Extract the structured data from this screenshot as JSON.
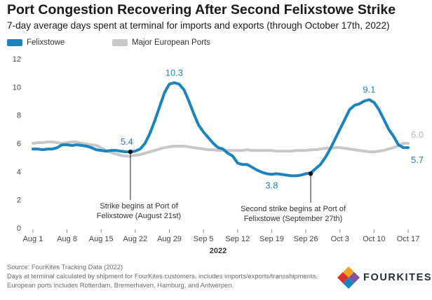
{
  "header": {
    "title": "Port Congestion Recovering After Second Felixstowe Strike",
    "subtitle": "7-day average days spent at terminal for imports and exports (through October 17th, 2022)"
  },
  "colors": {
    "felixstowe": "#1b84be",
    "europe": "#c8c8c8",
    "europe_label": "#b9b9b9"
  },
  "chart_data": {
    "type": "line",
    "xlabel": "2022",
    "ylabel": "",
    "ylim": [
      0,
      12
    ],
    "yticks": [
      0,
      2,
      4,
      6,
      8,
      10,
      12
    ],
    "categories": [
      "Aug 1",
      "Aug 8",
      "Aug 15",
      "Aug 22",
      "Aug 29",
      "Sep 5",
      "Sep 12",
      "Sep 19",
      "Sep 26",
      "Oct 3",
      "Oct 10",
      "Oct 17"
    ],
    "x_day_range": [
      -1,
      77
    ],
    "series": [
      {
        "name": "Felixstowe",
        "color": "#1b84be",
        "x": [
          0,
          1,
          2,
          3,
          4,
          5,
          6,
          7,
          8,
          9,
          10,
          11,
          12,
          13,
          14,
          15,
          16,
          17,
          18,
          19,
          20,
          21,
          22,
          23,
          24,
          25,
          26,
          27,
          28,
          29,
          30,
          31,
          32,
          33,
          34,
          35,
          36,
          37,
          38,
          39,
          40,
          41,
          42,
          43,
          44,
          45,
          46,
          47,
          48,
          49,
          50,
          51,
          52,
          53,
          54,
          55,
          56,
          57,
          58,
          59,
          60,
          61,
          62,
          63,
          64,
          65,
          66,
          67,
          68,
          69,
          70,
          71,
          72,
          73,
          74,
          75,
          76,
          77
        ],
        "values": [
          5.6,
          5.6,
          5.55,
          5.6,
          5.6,
          5.7,
          5.9,
          5.9,
          5.85,
          5.9,
          5.85,
          5.8,
          5.7,
          5.55,
          5.5,
          5.45,
          5.5,
          5.5,
          5.45,
          5.4,
          5.4,
          5.45,
          5.6,
          6.0,
          6.7,
          7.6,
          8.6,
          9.6,
          10.2,
          10.3,
          10.2,
          9.8,
          9.0,
          8.1,
          7.3,
          6.8,
          6.4,
          6.0,
          5.7,
          5.6,
          5.3,
          5.1,
          4.6,
          4.5,
          4.5,
          4.3,
          4.1,
          3.95,
          3.85,
          3.8,
          3.85,
          3.8,
          3.75,
          3.7,
          3.7,
          3.75,
          3.85,
          3.9,
          4.2,
          4.5,
          5.0,
          5.6,
          6.3,
          7.0,
          7.7,
          8.4,
          8.7,
          8.8,
          9.0,
          9.1,
          8.9,
          8.4,
          7.7,
          7.0,
          6.5,
          5.9,
          5.7,
          5.7
        ]
      },
      {
        "name": "Major European Ports",
        "color": "#c8c8c8",
        "x": [
          0,
          1,
          2,
          3,
          4,
          5,
          6,
          7,
          8,
          9,
          10,
          11,
          12,
          13,
          14,
          15,
          16,
          17,
          18,
          19,
          20,
          21,
          22,
          23,
          24,
          25,
          26,
          27,
          28,
          29,
          30,
          31,
          32,
          33,
          34,
          35,
          36,
          37,
          38,
          39,
          40,
          41,
          42,
          43,
          44,
          45,
          46,
          47,
          48,
          49,
          50,
          51,
          52,
          53,
          54,
          55,
          56,
          57,
          58,
          59,
          60,
          61,
          62,
          63,
          64,
          65,
          66,
          67,
          68,
          69,
          70,
          71,
          72,
          73,
          74,
          75,
          76,
          77
        ],
        "values": [
          6.0,
          6.05,
          6.05,
          6.1,
          6.1,
          6.05,
          6.0,
          6.05,
          6.1,
          6.1,
          6.0,
          5.95,
          5.9,
          5.85,
          5.7,
          5.5,
          5.35,
          5.25,
          5.15,
          5.1,
          5.1,
          5.15,
          5.2,
          5.3,
          5.4,
          5.5,
          5.6,
          5.7,
          5.75,
          5.8,
          5.8,
          5.8,
          5.75,
          5.7,
          5.65,
          5.6,
          5.55,
          5.55,
          5.5,
          5.5,
          5.5,
          5.5,
          5.5,
          5.5,
          5.55,
          5.5,
          5.5,
          5.5,
          5.5,
          5.5,
          5.45,
          5.45,
          5.45,
          5.45,
          5.5,
          5.5,
          5.5,
          5.55,
          5.55,
          5.6,
          5.65,
          5.65,
          5.7,
          5.7,
          5.65,
          5.6,
          5.55,
          5.5,
          5.45,
          5.4,
          5.4,
          5.45,
          5.5,
          5.6,
          5.7,
          5.85,
          6.0,
          6.0
        ]
      }
    ],
    "data_labels": [
      {
        "text": "5.4",
        "x": 20,
        "y": 5.4,
        "series": "Felixstowe"
      },
      {
        "text": "10.3",
        "x": 29,
        "y": 10.3,
        "series": "Felixstowe"
      },
      {
        "text": "3.8",
        "x": 49,
        "y": 3.8,
        "series": "Felixstowe"
      },
      {
        "text": "9.1",
        "x": 69,
        "y": 9.1,
        "series": "Felixstowe"
      },
      {
        "text": "6.0",
        "x": 77,
        "y": 6.0,
        "series": "Major European Ports"
      },
      {
        "text": "5.7",
        "x": 77,
        "y": 5.7,
        "series": "Felixstowe"
      }
    ],
    "annotations": [
      {
        "lines": [
          "Strike begins at Port of",
          "Felixstowe (August 21st)"
        ],
        "x": 20,
        "y": 5.4
      },
      {
        "lines": [
          "Second strike begins at Port of",
          "Felixstowe (September 27th)"
        ],
        "x": 57,
        "y": 3.85
      }
    ]
  },
  "footer": {
    "line1": "Source: FourKites Tracking Data (2022)",
    "line2": "Days at terminal calculated by shipment for FourKites customers, includes imports/exports/transshipments.",
    "line3": "European ports includes Rotterdam, Bremerhaven, Hamburg, and Antwerpen."
  },
  "logo": {
    "text": "FOURKITES",
    "icon": "fourkites-kite-icon"
  }
}
